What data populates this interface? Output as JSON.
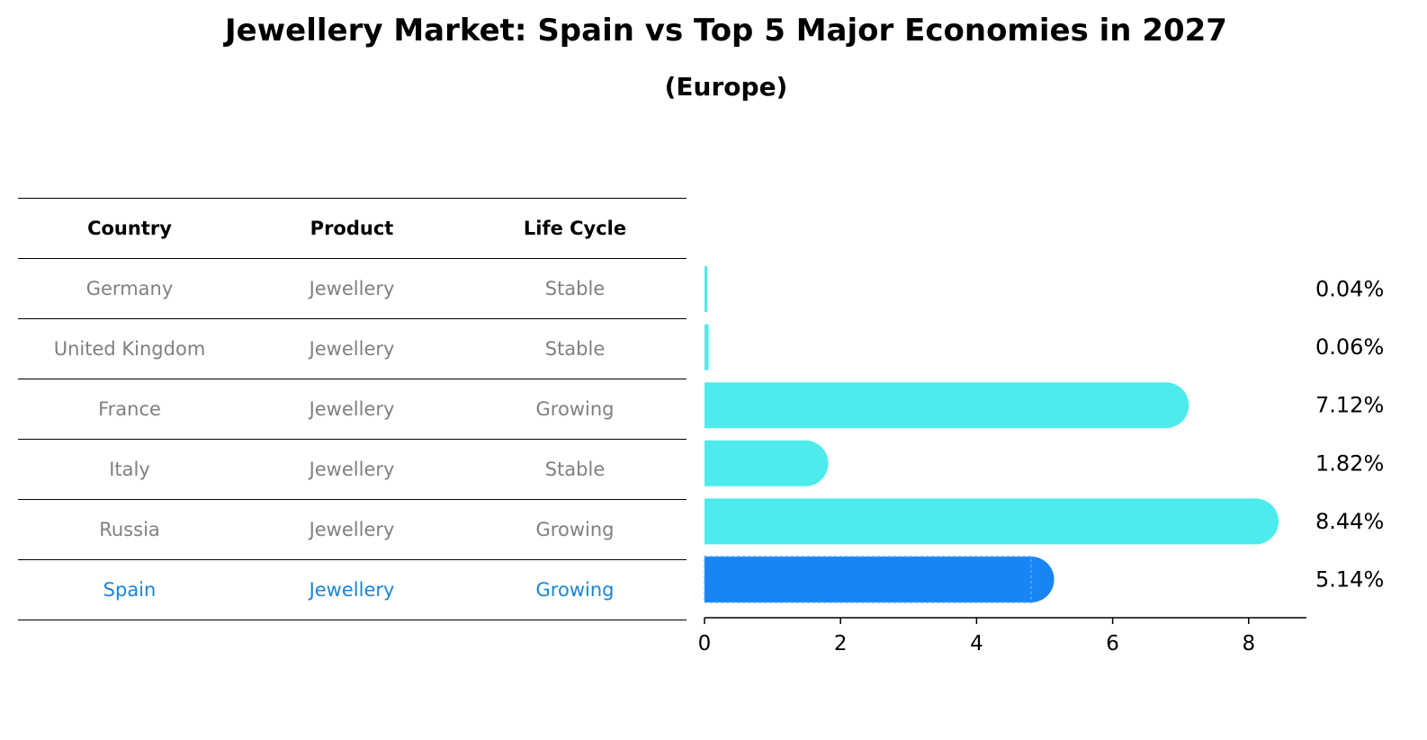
{
  "title": "Jewellery Market: Spain vs Top 5 Major Economies in 2027",
  "subtitle": "(Europe)",
  "table": {
    "headers": [
      "Country",
      "Product",
      "Life Cycle"
    ],
    "rows": [
      {
        "country": "Germany",
        "product": "Jewellery",
        "life_cycle": "Stable"
      },
      {
        "country": "United Kingdom",
        "product": "Jewellery",
        "life_cycle": "Stable"
      },
      {
        "country": "France",
        "product": "Jewellery",
        "life_cycle": "Growing"
      },
      {
        "country": "Italy",
        "product": "Jewellery",
        "life_cycle": "Stable"
      },
      {
        "country": "Russia",
        "product": "Jewellery",
        "life_cycle": "Growing"
      },
      {
        "country": "Spain",
        "product": "Jewellery",
        "life_cycle": "Growing"
      }
    ]
  },
  "colors": {
    "bar": "#4DEBEB",
    "highlight_bar": "#1985F5",
    "muted_text": "#808080",
    "highlight_text": "#1A85D6"
  },
  "chart_data": {
    "type": "bar",
    "orientation": "horizontal",
    "categories": [
      "Germany",
      "United Kingdom",
      "France",
      "Italy",
      "Russia",
      "Spain"
    ],
    "values": [
      0.04,
      0.06,
      7.12,
      1.82,
      8.44,
      5.14
    ],
    "value_labels": [
      "0.04%",
      "0.06%",
      "7.12%",
      "1.82%",
      "8.44%",
      "5.14%"
    ],
    "highlight": "Spain",
    "xticks": [
      0,
      2,
      4,
      6,
      8
    ],
    "xlim": [
      0,
      8.9
    ],
    "grid": false
  }
}
